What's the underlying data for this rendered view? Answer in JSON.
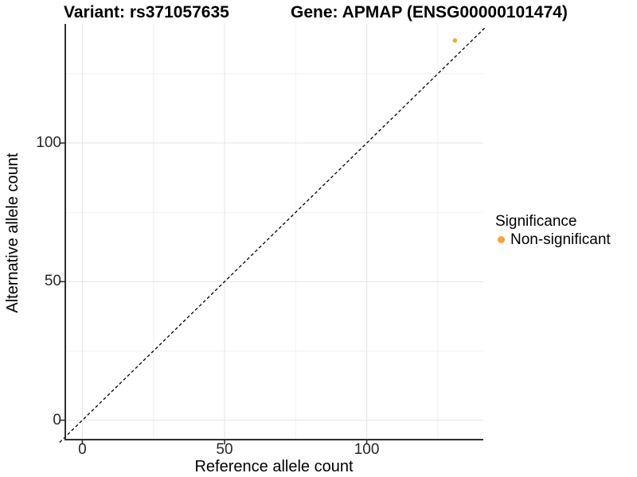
{
  "chart_data": {
    "type": "scatter",
    "title_left": "Variant: rs371057635",
    "title_right": "Gene: APMAP (ENSG00000101474)",
    "xlabel": "Reference allele count",
    "ylabel": "Alternative allele count",
    "xlim": [
      -6,
      141
    ],
    "ylim": [
      -7,
      143
    ],
    "x_ticks": [
      0,
      50,
      100
    ],
    "y_ticks": [
      0,
      50,
      100
    ],
    "x_minor_gridlines": [
      25,
      75,
      125
    ],
    "y_minor_gridlines": [
      25,
      75,
      125
    ],
    "grid": "major and minor gridlines on white background",
    "identity_line": {
      "style": "dashed",
      "color": "#000000",
      "from": [
        -8,
        -8
      ],
      "to": [
        142,
        142
      ]
    },
    "series": [
      {
        "name": "Non-significant",
        "color": "#F7A43C",
        "points": [
          {
            "x": 131,
            "y": 137
          }
        ]
      }
    ],
    "legend": {
      "title": "Significance",
      "position": "right",
      "items": [
        {
          "label": "Non-significant",
          "color": "#F7A43C"
        }
      ]
    },
    "colors": {
      "axis_line": "#2F2F2F",
      "tick_label": "#262626",
      "grid_major": "#E4E4E4",
      "grid_minor": "#F1F1F1",
      "background": "#FFFFFF"
    }
  }
}
